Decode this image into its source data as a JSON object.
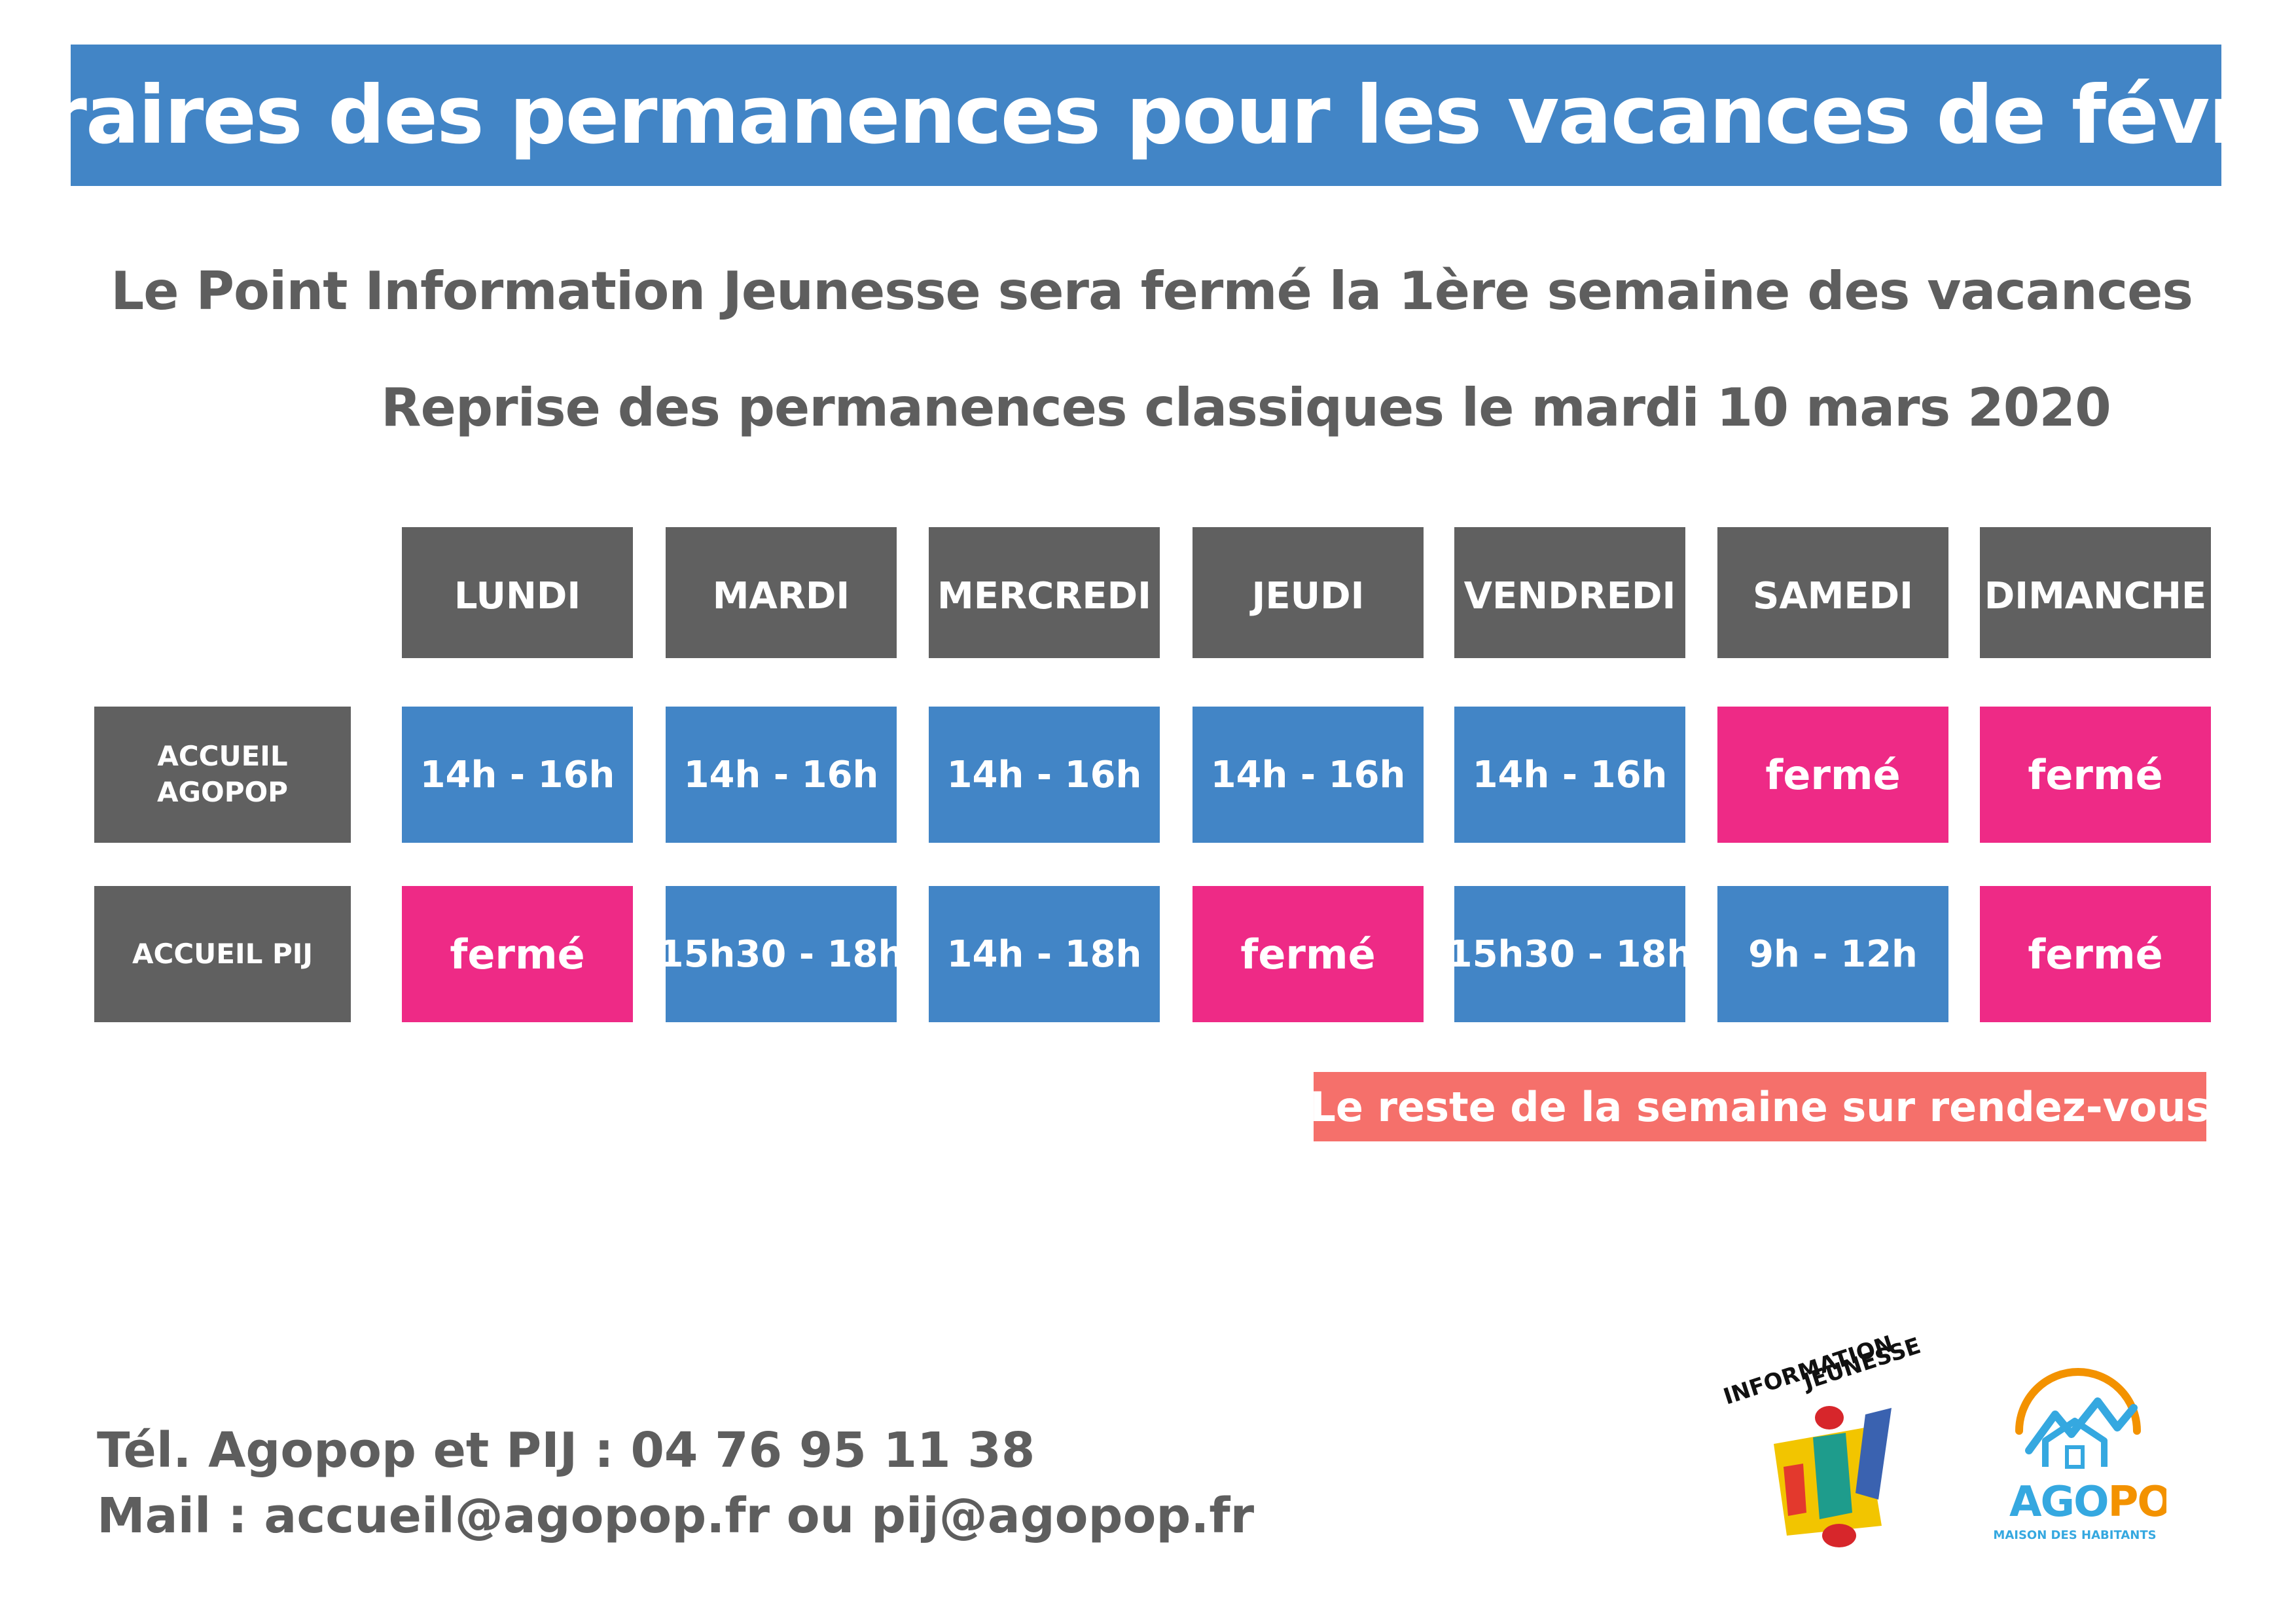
{
  "title": "Horaires des permanences pour les vacances de février",
  "subtitle_1": "Le Point Information Jeunesse sera fermé la 1ère semaine des vacances",
  "subtitle_2": "Reprise des permanences classiques le mardi 10 mars 2020",
  "days": [
    "LUNDI",
    "MARDI",
    "MERCREDI",
    "JEUDI",
    "VENDREDI",
    "SAMEDI",
    "DIMANCHE"
  ],
  "rows": [
    {
      "label_line1": "ACCUEIL",
      "label_line2": "AGOPOP",
      "slots": [
        "14h - 16h",
        "14h - 16h",
        "14h - 16h",
        "14h - 16h",
        "14h - 16h",
        "fermé",
        "fermé"
      ]
    },
    {
      "label_line1": "ACCUEIL PIJ",
      "label_line2": "",
      "slots": [
        "fermé",
        "15h30 - 18h",
        "14h - 18h",
        "fermé",
        "15h30 - 18h",
        "9h - 12h",
        "fermé"
      ]
    }
  ],
  "note": "Le reste de la semaine sur rendez-vous",
  "contact_phone": "Tél. Agopop et PIJ : 04 76 95 11 38",
  "contact_mail": "Mail : accueil@agopop.fr ou pij@agopop.fr",
  "logo_ij": {
    "line1": "INFORMATION",
    "line2": "JEUNESSE",
    "icon": "information-jeunesse-logo"
  },
  "logo_agopop": {
    "name_part1": "AGO",
    "name_part2": "POP",
    "tagline": "MAISON DES HABITANTS",
    "icon": "agopop-house-logo"
  },
  "colors": {
    "banner_blue": "#4285c6",
    "header_grey": "#606060",
    "open_blue": "#4285c6",
    "closed_pink": "#ee2a86",
    "note_salmon": "#f5706b",
    "text_grey": "#5e5e5e",
    "agopop_orange": "#f39200",
    "agopop_cyan": "#35a8e0"
  }
}
